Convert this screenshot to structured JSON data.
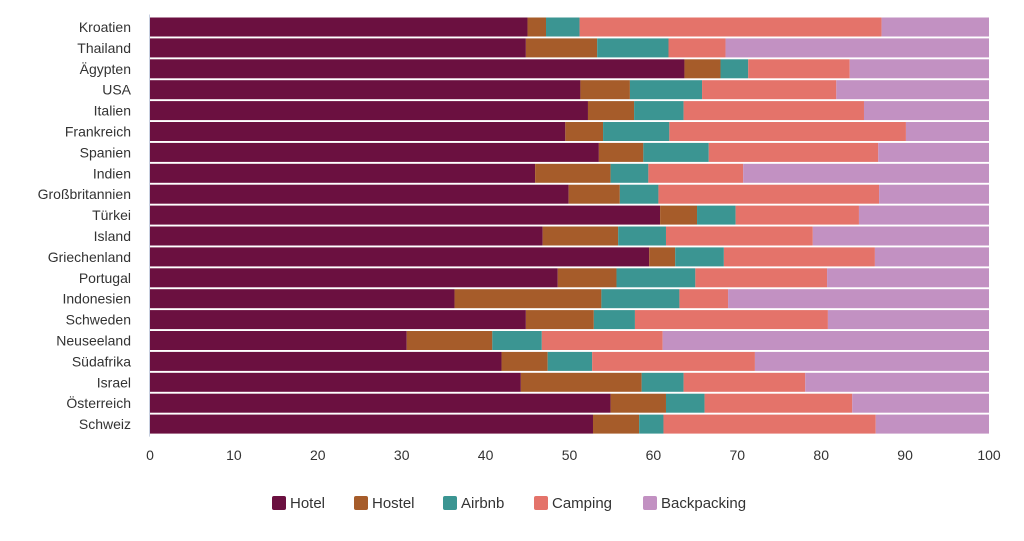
{
  "chart_data": {
    "type": "bar",
    "orientation": "horizontal",
    "stacked": true,
    "categories": [
      "Kroatien",
      "Thailand",
      "Ägypten",
      "USA",
      "Italien",
      "Frankreich",
      "Spanien",
      "Indien",
      "Großbritannien",
      "Türkei",
      "Island",
      "Griechenland",
      "Portugal",
      "Indonesien",
      "Schweden",
      "Neuseeland",
      "Südafrika",
      "Israel",
      "Österreich",
      "Schweiz"
    ],
    "series": [
      {
        "name": "Hotel",
        "color": "#6b1040",
        "values": [
          45.0,
          44.8,
          63.7,
          51.3,
          52.2,
          49.5,
          53.5,
          45.9,
          49.9,
          60.8,
          46.8,
          59.5,
          48.6,
          36.3,
          44.8,
          30.6,
          41.9,
          44.2,
          54.9,
          52.8
        ]
      },
      {
        "name": "Hostel",
        "color": "#a65c2a",
        "values": [
          2.2,
          8.5,
          4.3,
          5.9,
          5.5,
          4.5,
          5.3,
          9.0,
          6.1,
          4.4,
          9.0,
          3.1,
          7.0,
          17.5,
          8.1,
          10.2,
          5.5,
          14.4,
          6.6,
          5.5
        ]
      },
      {
        "name": "Airbnb",
        "color": "#3b9592",
        "values": [
          4.0,
          8.5,
          3.3,
          8.6,
          5.9,
          7.9,
          7.8,
          4.5,
          4.6,
          4.6,
          5.7,
          5.8,
          9.4,
          9.3,
          4.9,
          5.9,
          5.3,
          5.0,
          4.6,
          2.9
        ]
      },
      {
        "name": "Camping",
        "color": "#e4736a",
        "values": [
          36.0,
          6.8,
          12.1,
          16.0,
          21.5,
          28.2,
          20.2,
          11.3,
          26.3,
          14.7,
          17.5,
          18.0,
          15.7,
          5.8,
          23.0,
          14.4,
          19.4,
          14.5,
          17.6,
          25.3
        ]
      },
      {
        "name": "Backpacking",
        "color": "#c291c2",
        "values": [
          12.8,
          31.4,
          16.6,
          18.2,
          14.9,
          9.9,
          13.2,
          29.3,
          13.1,
          15.5,
          21.0,
          13.6,
          19.3,
          31.1,
          19.2,
          38.9,
          27.9,
          21.9,
          16.3,
          13.5
        ]
      }
    ],
    "xlim": [
      0,
      100
    ],
    "xticks": [
      "0",
      "10",
      "20",
      "30",
      "40",
      "50",
      "60",
      "70",
      "80",
      "90",
      "100"
    ],
    "title": "",
    "xlabel": "",
    "ylabel": "",
    "grid": false,
    "legend_position": "bottom-center"
  }
}
